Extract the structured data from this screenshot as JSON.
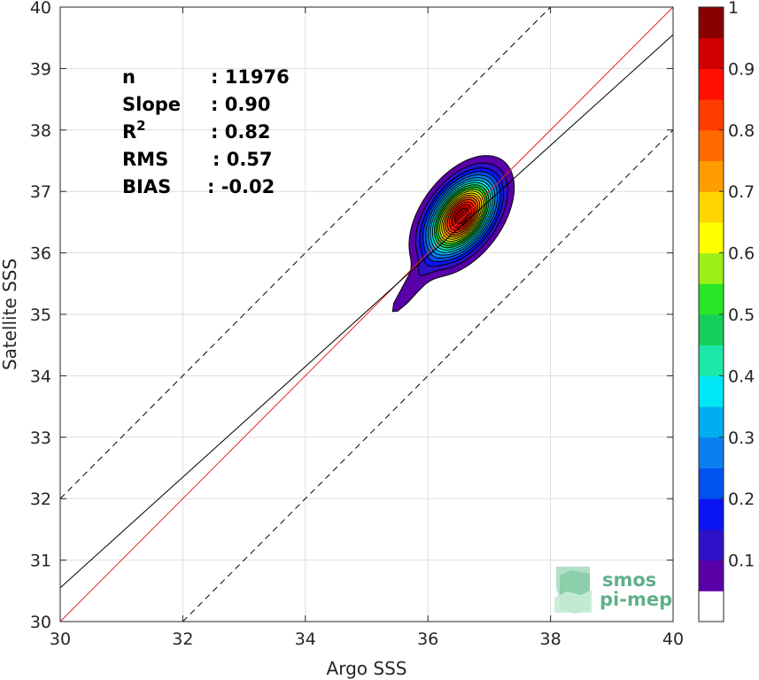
{
  "chart_data": {
    "type": "contour-density-scatter",
    "xlabel": "Argo SSS",
    "ylabel": "Satellite SSS",
    "xlim": [
      30,
      40
    ],
    "ylim": [
      30,
      40
    ],
    "x_ticks": [
      "30",
      "32",
      "34",
      "36",
      "38",
      "40"
    ],
    "y_ticks": [
      "30",
      "31",
      "32",
      "33",
      "34",
      "35",
      "36",
      "37",
      "38",
      "39",
      "40"
    ],
    "grid": true,
    "stats": [
      {
        "label": "n",
        "value": ": 11976"
      },
      {
        "label": "Slope",
        "value": ": 0.90"
      },
      {
        "label": "R",
        "superscript": "2",
        "value": ": 0.82"
      },
      {
        "label": "RMS",
        "value": ": 0.57"
      },
      {
        "label": "BIAS",
        "value": ": -0.02"
      }
    ],
    "lines": [
      {
        "kind": "identity",
        "color": "#e8251f",
        "slope": 1.0,
        "intercept": 0.0,
        "style": "solid"
      },
      {
        "kind": "regression",
        "color": "#000000",
        "slope": 0.9,
        "intercept": 3.55,
        "style": "solid"
      },
      {
        "kind": "upper-bound",
        "color": "#000000",
        "slope": 1.0,
        "intercept": 2.0,
        "style": "dashed"
      },
      {
        "kind": "lower-bound",
        "color": "#000000",
        "slope": 1.0,
        "intercept": -2.0,
        "style": "dashed"
      }
    ],
    "density": {
      "peak": [
        36.55,
        36.6
      ],
      "levels": [
        0.05,
        0.1,
        0.15,
        0.2,
        0.25,
        0.3,
        0.35,
        0.4,
        0.45,
        0.5,
        0.55,
        0.6,
        0.65,
        0.7,
        0.75,
        0.8,
        0.85,
        0.9,
        0.95
      ]
    },
    "colorbar": {
      "tick_labels": [
        "0.1",
        "0.2",
        "0.3",
        "0.4",
        "0.5",
        "0.6",
        "0.7",
        "0.8",
        "0.9",
        "1"
      ],
      "tick_values": [
        0.1,
        0.2,
        0.3,
        0.4,
        0.5,
        0.6,
        0.7,
        0.8,
        0.9,
        1.0
      ],
      "colors": [
        "#ffffff",
        "#5a00a8",
        "#2d12c8",
        "#0a14f2",
        "#0052f0",
        "#0a80f0",
        "#00aef0",
        "#00e8f6",
        "#1ee8a8",
        "#14d05a",
        "#28e628",
        "#9cf016",
        "#ffff00",
        "#ffd400",
        "#ff9c00",
        "#ff6a00",
        "#ff3c00",
        "#ff1000",
        "#d00000",
        "#8a0000"
      ]
    }
  },
  "logo": {
    "line1": "smos",
    "line2": "pi-mep"
  }
}
